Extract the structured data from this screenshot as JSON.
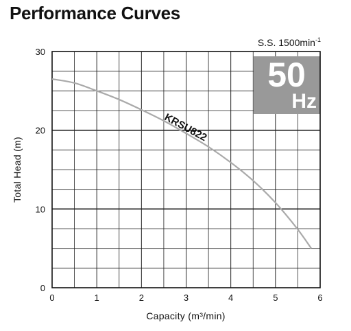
{
  "title": "Performance Curves",
  "speed_label": "S.S. 1500min",
  "speed_superscript": "-1",
  "frequency_badge": {
    "number": "50",
    "unit": "Hz",
    "background": "#999999",
    "text_color": "#ffffff"
  },
  "curve_color": "#aaaaaa",
  "chart_data": {
    "type": "line",
    "xlabel": "Capacity (m³/min)",
    "ylabel": "Total Head (m)",
    "xlim": [
      0,
      6
    ],
    "ylim": [
      0,
      30
    ],
    "x_ticks": [
      "0",
      "1",
      "2",
      "3",
      "4",
      "5",
      "6"
    ],
    "y_ticks": [
      "0",
      "10",
      "20",
      "30"
    ],
    "grid": true,
    "series": [
      {
        "name": "KRSU822",
        "x": [
          0,
          0.5,
          1.0,
          1.5,
          2.0,
          2.5,
          3.0,
          3.5,
          4.0,
          4.5,
          5.0,
          5.5,
          5.8
        ],
        "y": [
          26.5,
          26.0,
          25.0,
          23.9,
          22.6,
          21.2,
          19.6,
          17.9,
          15.9,
          13.6,
          10.8,
          7.4,
          5.0
        ]
      }
    ]
  }
}
